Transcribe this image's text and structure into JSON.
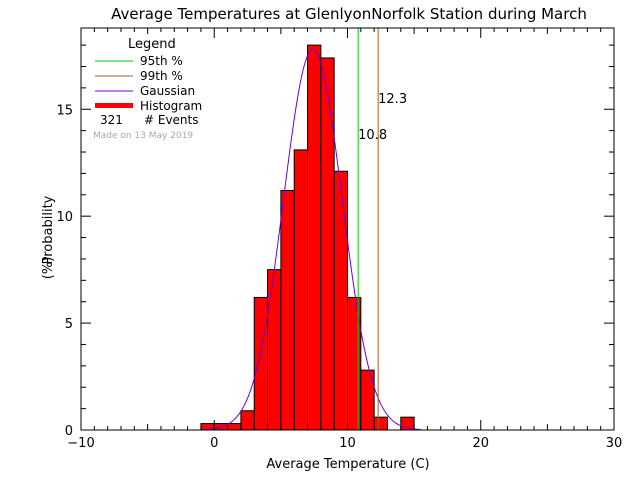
{
  "chart_data": {
    "type": "bar",
    "title": "Average Temperatures at GlenlyonNorfolk Station during March",
    "xlabel": "Average Temperature (C)",
    "ylabel": "Probability (%)",
    "xlim": [
      -10,
      30
    ],
    "ylim": [
      0,
      18.8
    ],
    "x_ticks": [
      "−10",
      "0",
      "10",
      "20",
      "30"
    ],
    "y_ticks": [
      "0",
      "5",
      "10",
      "15"
    ],
    "bin_width": 1,
    "bins": [
      {
        "x0": -1,
        "value": 0.3
      },
      {
        "x0": 0,
        "value": 0.3
      },
      {
        "x0": 1,
        "value": 0.3
      },
      {
        "x0": 2,
        "value": 0.9
      },
      {
        "x0": 3,
        "value": 6.2
      },
      {
        "x0": 4,
        "value": 7.5
      },
      {
        "x0": 5,
        "value": 11.2
      },
      {
        "x0": 6,
        "value": 13.1
      },
      {
        "x0": 7,
        "value": 18.0
      },
      {
        "x0": 8,
        "value": 17.4
      },
      {
        "x0": 9,
        "value": 12.1
      },
      {
        "x0": 10,
        "value": 6.2
      },
      {
        "x0": 11,
        "value": 2.8
      },
      {
        "x0": 12,
        "value": 0.6
      },
      {
        "x0": 14,
        "value": 0.6
      }
    ],
    "gaussian": {
      "mean": 7.4,
      "sigma": 2.2,
      "peak": 17.8
    },
    "percentile_95": {
      "value": 10.8,
      "label": "10.8",
      "color": "#00cc00"
    },
    "percentile_99": {
      "value": 12.3,
      "label": "12.3",
      "color": "#b05a1a"
    },
    "colors": {
      "histogram": "#ff0000",
      "gaussian": "#7000cc",
      "axes": "#000000"
    },
    "legend": {
      "title": "Legend",
      "items": [
        {
          "label": "95th %",
          "color": "#00cc00"
        },
        {
          "label": "99th %",
          "color": "#b05a1a"
        },
        {
          "label": "Gaussian",
          "color": "#7000cc"
        },
        {
          "label": "Histogram",
          "color": "#ff0000"
        }
      ],
      "events_count": "321",
      "events_label": "# Events",
      "made_on": "Made on 13 May 2019"
    }
  }
}
